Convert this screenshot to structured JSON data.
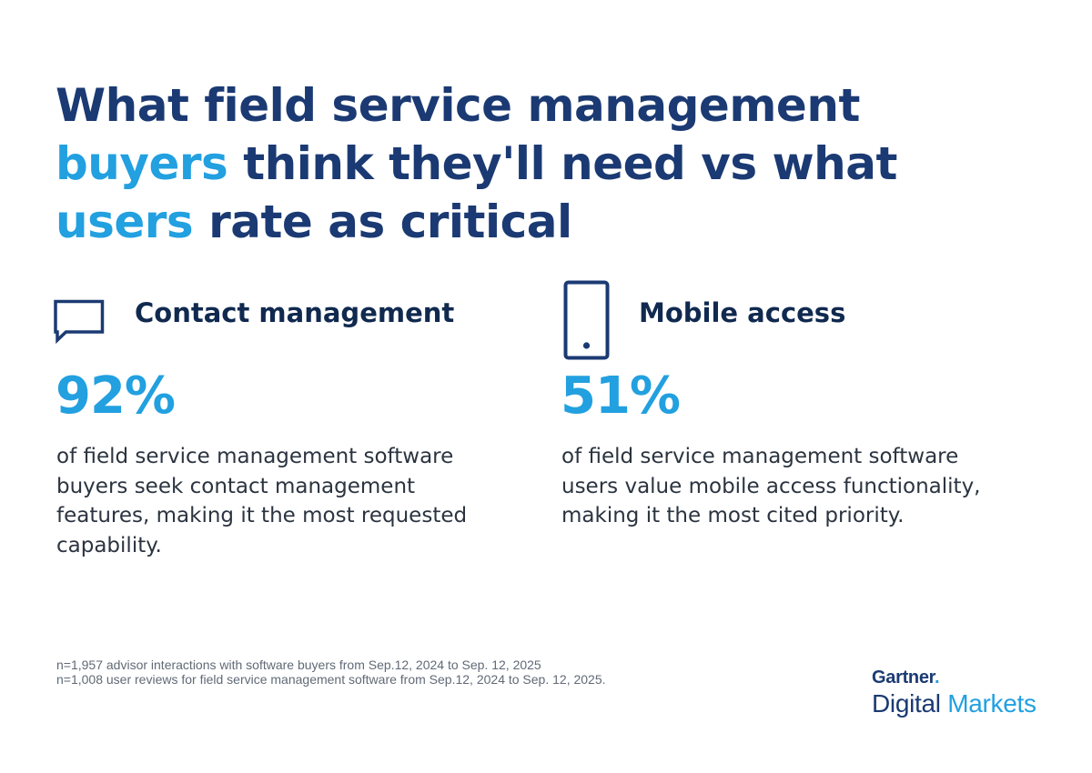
{
  "headline": {
    "part1": "What field service management ",
    "accent1": "buyers",
    "part2": " think they'll need vs what ",
    "accent2": "users",
    "part3": " rate as critical"
  },
  "stats": [
    {
      "icon": "chat-bubble-icon",
      "label": "Contact management",
      "value": "92%",
      "description": "of field service management software buyers seek contact management features, making it the most requested capability."
    },
    {
      "icon": "mobile-phone-icon",
      "label": "Mobile access",
      "value": "51%",
      "description": "of field service management software users value mobile access functionality, making it the most cited priority."
    }
  ],
  "footnotes": [
    "n=1,957 advisor interactions with software buyers from Sep.12, 2024 to Sep. 12, 2025",
    "n=1,008 user reviews for field service management software from Sep.12, 2024 to Sep. 12, 2025."
  ],
  "brand": {
    "line1": "Gartner",
    "line1_dot": ".",
    "line2_a": "Digital ",
    "line2_b": "Markets"
  },
  "colors": {
    "navy": "#1b3a73",
    "accent_blue": "#22a0e0",
    "text_dark": "#2b3440"
  }
}
